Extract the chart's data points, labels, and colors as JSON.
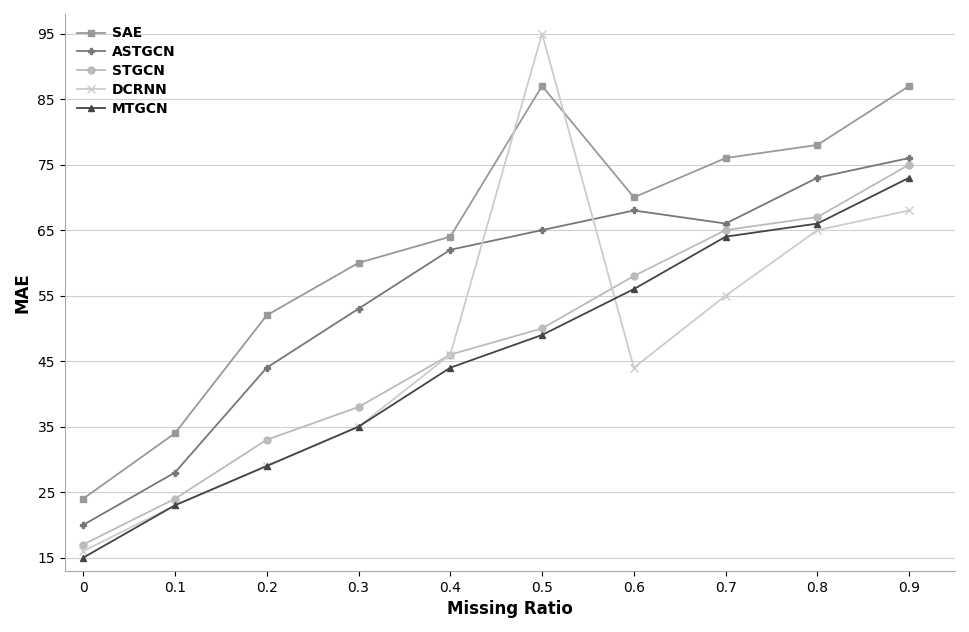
{
  "x": [
    0,
    0.1,
    0.2,
    0.3,
    0.4,
    0.5,
    0.6,
    0.7,
    0.8,
    0.9
  ],
  "series": [
    {
      "name": "SAE",
      "values": [
        24,
        34,
        52,
        60,
        64,
        87,
        70,
        76,
        78,
        87
      ],
      "color": "#999999",
      "marker": "s",
      "markersize": 5,
      "linewidth": 1.3
    },
    {
      "name": "ASTGCN",
      "values": [
        20,
        28,
        44,
        53,
        62,
        65,
        68,
        66,
        73,
        76
      ],
      "color": "#777777",
      "marker": "P",
      "markersize": 5,
      "linewidth": 1.3
    },
    {
      "name": "STGCN",
      "values": [
        17,
        24,
        33,
        38,
        46,
        50,
        58,
        65,
        67,
        75
      ],
      "color": "#bbbbbb",
      "marker": "o",
      "markersize": 5,
      "linewidth": 1.3
    },
    {
      "name": "DCRNN",
      "values": [
        16,
        23,
        29,
        35,
        46,
        95,
        44,
        55,
        65,
        68
      ],
      "color": "#cccccc",
      "marker": "x",
      "markersize": 6,
      "linewidth": 1.3
    },
    {
      "name": "MTGCN",
      "values": [
        15,
        23,
        29,
        35,
        44,
        49,
        56,
        64,
        66,
        73
      ],
      "color": "#444444",
      "marker": "^",
      "markersize": 5,
      "linewidth": 1.3
    }
  ],
  "xlabel": "Missing Ratio",
  "ylabel": "MAE",
  "yticks": [
    15,
    25,
    35,
    45,
    55,
    65,
    75,
    85,
    95
  ],
  "xticks": [
    0,
    0.1,
    0.2,
    0.3,
    0.4,
    0.5,
    0.6,
    0.7,
    0.8,
    0.9
  ],
  "xtick_labels": [
    "0",
    "0.1",
    "0.2",
    "0.3",
    "0.4",
    "0.5",
    "0.6",
    "0.7",
    "0.8",
    "0.9"
  ],
  "ytick_labels": [
    "15",
    "25",
    "35",
    "45",
    "55",
    "65",
    "75",
    "85",
    "95"
  ],
  "xlim": [
    -0.02,
    0.95
  ],
  "ylim": [
    13,
    98
  ],
  "background_color": "#ffffff",
  "grid_color": "#d0d0d0",
  "legend_loc": "upper left"
}
